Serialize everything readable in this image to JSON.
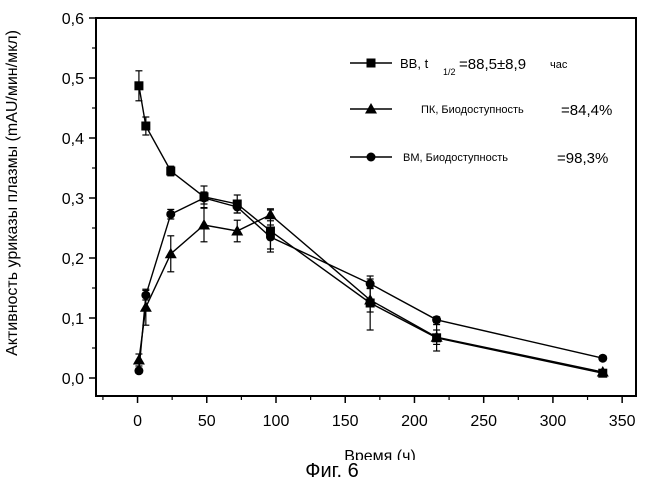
{
  "chart_data": {
    "type": "line",
    "xlabel": "Время (ч)",
    "ylabel": "Активность уриказы плазмы (mAU/мин/мкл)",
    "xlim": [
      -30,
      360
    ],
    "ylim": [
      -0.03,
      0.6
    ],
    "xticks": [
      0,
      50,
      100,
      150,
      200,
      250,
      300,
      350
    ],
    "yticks": [
      0.0,
      0.1,
      0.2,
      0.3,
      0.4,
      0.5,
      0.6
    ],
    "xtick_labels": [
      "0",
      "50",
      "100",
      "150",
      "200",
      "250",
      "300",
      "350"
    ],
    "ytick_labels": [
      "0,0",
      "0,1",
      "0,2",
      "0,3",
      "0,4",
      "0,5",
      "0,6"
    ],
    "legend_position": "top-right",
    "series": [
      {
        "name": "ВВ, t1/2=88,5±8,9 час",
        "legend_prefix": "ВВ, t",
        "legend_sub": "1/2",
        "legend_value": "=88,5±8,9",
        "legend_unit": "час",
        "marker": "square",
        "x": [
          1,
          6,
          24,
          48,
          72,
          96,
          168,
          216,
          336
        ],
        "y": [
          0.487,
          0.42,
          0.345,
          0.302,
          0.29,
          0.245,
          0.125,
          0.067,
          0.008
        ],
        "err": [
          0.025,
          0.015,
          0.008,
          0.018,
          0.015,
          0.035,
          0.045,
          0.022,
          0.005
        ]
      },
      {
        "name": "ПК, Биодоступность =84,4%",
        "legend_prefix": "ПК, Биодоступность",
        "legend_value": "=84,4%",
        "marker": "triangle",
        "x": [
          1,
          6,
          24,
          48,
          72,
          96,
          168,
          216,
          336
        ],
        "y": [
          0.03,
          0.118,
          0.207,
          0.255,
          0.245,
          0.272,
          0.13,
          0.068,
          0.01
        ],
        "err": [
          0.01,
          0.03,
          0.03,
          0.028,
          0.018,
          0.01,
          0.02,
          0.012,
          0.004
        ]
      },
      {
        "name": "ВМ, Биодоступность =98,3%",
        "legend_prefix": "ВМ, Биодоступность",
        "legend_value": "=98,3%",
        "marker": "circle",
        "x": [
          1,
          6,
          24,
          48,
          72,
          96,
          168,
          216,
          336
        ],
        "y": [
          0.012,
          0.138,
          0.273,
          0.3,
          0.285,
          0.235,
          0.157,
          0.097,
          0.033
        ],
        "err": [
          0.004,
          0.008,
          0.008,
          0.01,
          0.01,
          0.02,
          0.008,
          0.005,
          0.004
        ]
      }
    ]
  },
  "caption": "Фиг. 6"
}
